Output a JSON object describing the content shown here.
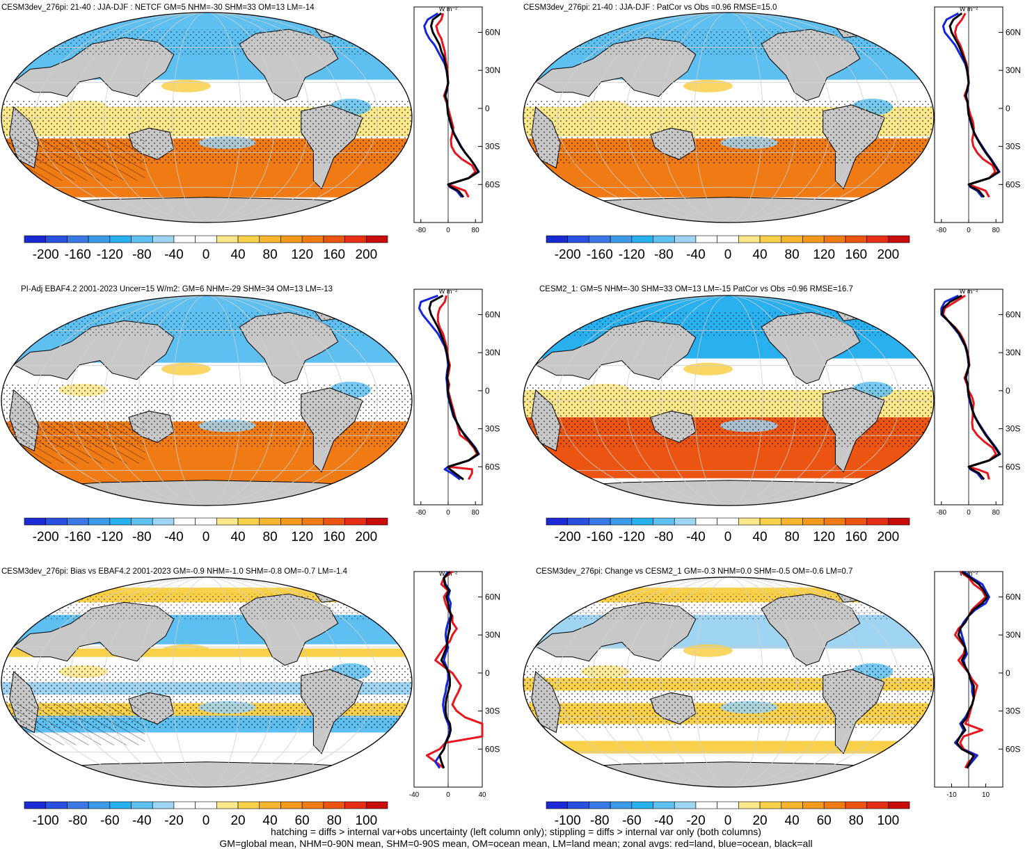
{
  "colors": {
    "land": "#c8c8c8",
    "ocean_neg": "#5ab4f0",
    "ocean_pos": "#f5b83a",
    "line_land": "#e8141e",
    "line_ocean": "#1424e0",
    "line_all": "#000000"
  },
  "footer": {
    "line1": "hatching = diffs > internal var+obs uncertainty (left column only); stippling = diffs > internal var only (both columns)",
    "line2": "GM=global mean, NHM=0-90N mean, SHM=0-90S mean, OM=ocean mean, LM=land mean; zonal avgs: red=land, blue=ocean, black=all"
  },
  "chart_data": [
    {
      "type": "heatmap",
      "title": "CESM3dev_276pi: 21-40 : JJA-DJF : NETCF GM=5 NHM=-30 SHM=33 OM=13 LM=-14",
      "colorbar_labels": [
        "-200",
        "-160",
        "-120",
        "-80",
        "-40",
        "0",
        "40",
        "80",
        "120",
        "160",
        "200"
      ],
      "zonal": {
        "unit_label": "W m⁻²",
        "xticks": [
          "-80",
          "0",
          "80"
        ],
        "xlim": [
          -100,
          100
        ],
        "yticks": [
          "60N",
          "30N",
          "0",
          "30S",
          "60S"
        ],
        "lat": [
          75,
          70,
          65,
          60,
          55,
          50,
          45,
          40,
          35,
          30,
          25,
          20,
          15,
          10,
          5,
          0,
          -5,
          -10,
          -15,
          -20,
          -25,
          -30,
          -35,
          -40,
          -45,
          -50,
          -55,
          -60,
          -62,
          -65,
          -70
        ],
        "series": [
          {
            "role": "land",
            "values": [
              -15,
              -20,
              -35,
              -30,
              -20,
              -15,
              -10,
              -8,
              -5,
              -2,
              -1,
              0,
              -5,
              -12,
              -5,
              0,
              5,
              10,
              15,
              12,
              8,
              10,
              20,
              40,
              70,
              80,
              60,
              0,
              20,
              50,
              60
            ]
          },
          {
            "role": "ocean",
            "values": [
              -30,
              -60,
              -70,
              -65,
              -55,
              -40,
              -30,
              -20,
              -10,
              -5,
              -2,
              0,
              -3,
              -8,
              -3,
              -2,
              0,
              5,
              10,
              18,
              28,
              38,
              50,
              65,
              78,
              90,
              60,
              0,
              5,
              25,
              40
            ]
          },
          {
            "role": "all",
            "values": [
              -20,
              -45,
              -50,
              -45,
              -35,
              -25,
              -20,
              -12,
              -8,
              -4,
              -2,
              0,
              -4,
              -9,
              -3,
              -2,
              0,
              6,
              11,
              17,
              27,
              37,
              50,
              65,
              78,
              88,
              60,
              0,
              8,
              30,
              45
            ]
          }
        ]
      }
    },
    {
      "type": "heatmap",
      "title": "CESM3dev_276pi: 21-40 : JJA-DJF : PatCor vs Obs =0.96 RMSE=15.0",
      "colorbar_labels": [
        "-200",
        "-160",
        "-120",
        "-80",
        "-40",
        "0",
        "40",
        "80",
        "120",
        "160",
        "200"
      ],
      "zonal": {
        "unit_label": "W m⁻²",
        "xticks": [
          "-80",
          "0",
          "80"
        ],
        "xlim": [
          -100,
          100
        ],
        "yticks": [
          "60N",
          "30N",
          "0",
          "30S",
          "60S"
        ],
        "lat": [
          75,
          70,
          65,
          60,
          55,
          50,
          45,
          40,
          35,
          30,
          25,
          20,
          15,
          10,
          5,
          0,
          -5,
          -10,
          -15,
          -20,
          -25,
          -30,
          -35,
          -40,
          -45,
          -50,
          -55,
          -60,
          -62,
          -65,
          -70
        ],
        "series": [
          {
            "role": "land",
            "values": [
              -10,
              -20,
              -35,
              -40,
              -35,
              -25,
              -18,
              -12,
              -6,
              -3,
              -1,
              0,
              -5,
              -12,
              -4,
              0,
              5,
              12,
              15,
              14,
              10,
              14,
              25,
              42,
              70,
              78,
              60,
              0,
              20,
              50,
              60
            ]
          },
          {
            "role": "ocean",
            "values": [
              -30,
              -65,
              -75,
              -70,
              -55,
              -40,
              -30,
              -20,
              -10,
              -5,
              -2,
              0,
              -3,
              -8,
              -3,
              -2,
              0,
              5,
              10,
              18,
              28,
              40,
              52,
              66,
              78,
              90,
              60,
              0,
              5,
              25,
              40
            ]
          },
          {
            "role": "all",
            "values": [
              -20,
              -45,
              -55,
              -50,
              -40,
              -30,
              -22,
              -15,
              -8,
              -4,
              -2,
              0,
              -4,
              -9,
              -3,
              -2,
              0,
              6,
              11,
              17,
              27,
              38,
              50,
              64,
              76,
              88,
              60,
              0,
              8,
              30,
              45
            ]
          }
        ]
      }
    },
    {
      "type": "heatmap",
      "title": "PI-Adj EBAF4.2 2001-2023 Uncer=15 W/m2: GM=6 NHM=-29 SHM=34 OM=13 LM=-13",
      "colorbar_labels": [
        "-200",
        "-160",
        "-120",
        "-80",
        "-40",
        "0",
        "40",
        "80",
        "120",
        "160",
        "200"
      ],
      "zonal": {
        "unit_label": "W m⁻²",
        "xticks": [
          "-80",
          "0",
          "80"
        ],
        "xlim": [
          -100,
          100
        ],
        "yticks": [
          "60N",
          "30N",
          "0",
          "30S",
          "60S"
        ],
        "lat": [
          75,
          70,
          65,
          60,
          55,
          50,
          45,
          40,
          35,
          30,
          25,
          20,
          15,
          10,
          5,
          0,
          -5,
          -10,
          -15,
          -20,
          -25,
          -30,
          -35,
          -40,
          -45,
          -50,
          -55,
          -60,
          -62,
          -65,
          -70
        ],
        "series": [
          {
            "role": "land",
            "values": [
              -5,
              -10,
              -25,
              -30,
              -30,
              -25,
              -15,
              -10,
              -5,
              -2,
              0,
              5,
              2,
              -2,
              3,
              0,
              5,
              10,
              15,
              20,
              25,
              30,
              35,
              60,
              75,
              85,
              60,
              0,
              70,
              70,
              60
            ]
          },
          {
            "role": "ocean",
            "values": [
              -30,
              -80,
              -85,
              -75,
              -60,
              -45,
              -30,
              -20,
              -10,
              -5,
              -2,
              0,
              -3,
              -5,
              -3,
              -2,
              0,
              5,
              10,
              15,
              25,
              35,
              50,
              65,
              80,
              90,
              60,
              0,
              -10,
              10,
              35
            ]
          },
          {
            "role": "all",
            "values": [
              -15,
              -50,
              -55,
              -50,
              -40,
              -30,
              -22,
              -15,
              -8,
              -4,
              -1,
              2,
              -1,
              -3,
              0,
              -1,
              2,
              7,
              12,
              17,
              26,
              36,
              48,
              63,
              78,
              88,
              60,
              0,
              5,
              20,
              45
            ]
          }
        ]
      }
    },
    {
      "type": "heatmap",
      "title": "CESM2_1: GM=5 NHM=-30 SHM=33 OM=13 LM=-15 PatCor vs Obs =0.96 RMSE=16.7",
      "colorbar_labels": [
        "-200",
        "-160",
        "-120",
        "-80",
        "-40",
        "0",
        "40",
        "80",
        "120",
        "160",
        "200"
      ],
      "zonal": {
        "unit_label": "W m⁻²",
        "xticks": [
          "-80",
          "0",
          "80"
        ],
        "xlim": [
          -100,
          100
        ],
        "yticks": [
          "60N",
          "30N",
          "0",
          "30S",
          "60S"
        ],
        "lat": [
          75,
          70,
          65,
          60,
          55,
          50,
          45,
          40,
          35,
          30,
          25,
          20,
          15,
          10,
          5,
          0,
          -5,
          -10,
          -15,
          -20,
          -25,
          -30,
          -35,
          -40,
          -45,
          -50,
          -55,
          -60,
          -62,
          -65,
          -70
        ],
        "series": [
          {
            "role": "land",
            "values": [
              -10,
              -40,
              -70,
              -75,
              -60,
              -40,
              -25,
              -15,
              -8,
              -3,
              0,
              2,
              -5,
              -12,
              -5,
              0,
              10,
              15,
              12,
              12,
              10,
              12,
              25,
              45,
              70,
              80,
              60,
              0,
              25,
              55,
              60
            ]
          },
          {
            "role": "ocean",
            "values": [
              -30,
              -70,
              -80,
              -80,
              -60,
              -45,
              -30,
              -20,
              -10,
              -5,
              -2,
              0,
              -3,
              -8,
              -3,
              -2,
              0,
              5,
              10,
              18,
              28,
              40,
              52,
              66,
              80,
              92,
              60,
              0,
              5,
              25,
              40
            ]
          },
          {
            "role": "all",
            "values": [
              -20,
              -55,
              -75,
              -78,
              -60,
              -42,
              -28,
              -18,
              -9,
              -4,
              -1,
              1,
              -4,
              -9,
              -3,
              -2,
              2,
              7,
              11,
              17,
              27,
              38,
              50,
              64,
              78,
              90,
              60,
              0,
              8,
              30,
              45
            ]
          }
        ]
      }
    },
    {
      "type": "heatmap",
      "title": "CESM3dev_276pi: Bias vs EBAF4.2 2001-2023 GM=-0.9 NHM=-1.0 SHM=-0.8 OM=-0.7 LM=-1.4",
      "colorbar_labels": [
        "-100",
        "-80",
        "-60",
        "-40",
        "-20",
        "0",
        "20",
        "40",
        "60",
        "80",
        "100"
      ],
      "zonal": {
        "unit_label": "W m⁻²",
        "xticks": [
          "-40",
          "0",
          "40"
        ],
        "xlim": [
          -40,
          40
        ],
        "yticks": [
          "60N",
          "30N",
          "0",
          "30S",
          "60S"
        ],
        "lat": [
          80,
          75,
          70,
          65,
          60,
          55,
          50,
          45,
          40,
          35,
          30,
          25,
          20,
          15,
          10,
          5,
          0,
          -5,
          -10,
          -15,
          -20,
          -25,
          -30,
          -35,
          -40,
          -45,
          -50,
          -55,
          -60,
          -65,
          -70,
          -75
        ],
        "series": [
          {
            "role": "land",
            "values": [
              5,
              -5,
              -8,
              0,
              -5,
              -3,
              0,
              5,
              5,
              10,
              5,
              2,
              -5,
              -10,
              -15,
              -5,
              5,
              10,
              15,
              12,
              8,
              5,
              10,
              20,
              40,
              45,
              42,
              -3,
              -10,
              -25,
              -15,
              -5
            ]
          },
          {
            "role": "ocean",
            "values": [
              0,
              -5,
              -3,
              2,
              0,
              3,
              2,
              3,
              0,
              -2,
              -3,
              -2,
              0,
              -3,
              -5,
              -2,
              0,
              0,
              -2,
              -3,
              -5,
              -6,
              -5,
              -3,
              0,
              2,
              0,
              -3,
              -5,
              -10,
              -15,
              -10
            ]
          },
          {
            "role": "all",
            "values": [
              2,
              -5,
              -4,
              1,
              -2,
              0,
              1,
              4,
              2,
              2,
              0,
              -1,
              -2,
              -5,
              -8,
              -3,
              1,
              2,
              2,
              0,
              -2,
              -3,
              -3,
              -2,
              2,
              3,
              1,
              -3,
              -5,
              -10,
              -8,
              -5
            ]
          }
        ]
      }
    },
    {
      "type": "heatmap",
      "title": "CESM3dev_276pi: Change vs CESM2_1 GM=-0.3 NHM=0.0 SHM=-0.5 OM=-0.6 LM=0.7",
      "colorbar_labels": [
        "-100",
        "-80",
        "-60",
        "-40",
        "-20",
        "0",
        "20",
        "40",
        "60",
        "80",
        "100"
      ],
      "zonal": {
        "unit_label": "W m⁻²",
        "xticks": [
          "-10",
          "10"
        ],
        "xlim": [
          -20,
          20
        ],
        "yticks": [
          "60N",
          "30N",
          "0",
          "30S",
          "60S"
        ],
        "lat": [
          80,
          75,
          70,
          65,
          60,
          55,
          50,
          45,
          40,
          35,
          30,
          25,
          20,
          15,
          10,
          5,
          0,
          -5,
          -10,
          -15,
          -20,
          -25,
          -30,
          -35,
          -40,
          -45,
          -50,
          -55,
          -60,
          -65,
          -70,
          -75
        ],
        "series": [
          {
            "role": "land",
            "values": [
              -5,
              0,
              3,
              8,
              10,
              6,
              2,
              0,
              -2,
              -6,
              -8,
              -5,
              -2,
              -3,
              -6,
              -3,
              0,
              2,
              5,
              4,
              3,
              2,
              1,
              0,
              -2,
              8,
              -3,
              -5,
              -3,
              5,
              0,
              -2
            ]
          },
          {
            "role": "ocean",
            "values": [
              -3,
              2,
              8,
              10,
              12,
              10,
              4,
              0,
              -3,
              -5,
              -4,
              -3,
              -2,
              -1,
              -3,
              -2,
              0,
              1,
              2,
              2,
              3,
              2,
              0,
              -2,
              -5,
              -3,
              -5,
              -8,
              -4,
              5,
              2,
              -1
            ]
          },
          {
            "role": "all",
            "values": [
              -4,
              1,
              6,
              9,
              11,
              8,
              3,
              0,
              -2,
              -5,
              -6,
              -4,
              -2,
              -2,
              -4,
              -2,
              0,
              1,
              3,
              3,
              3,
              2,
              0,
              -1,
              -4,
              -2,
              -5,
              -7,
              -4,
              3,
              1,
              -1
            ]
          }
        ]
      }
    }
  ]
}
